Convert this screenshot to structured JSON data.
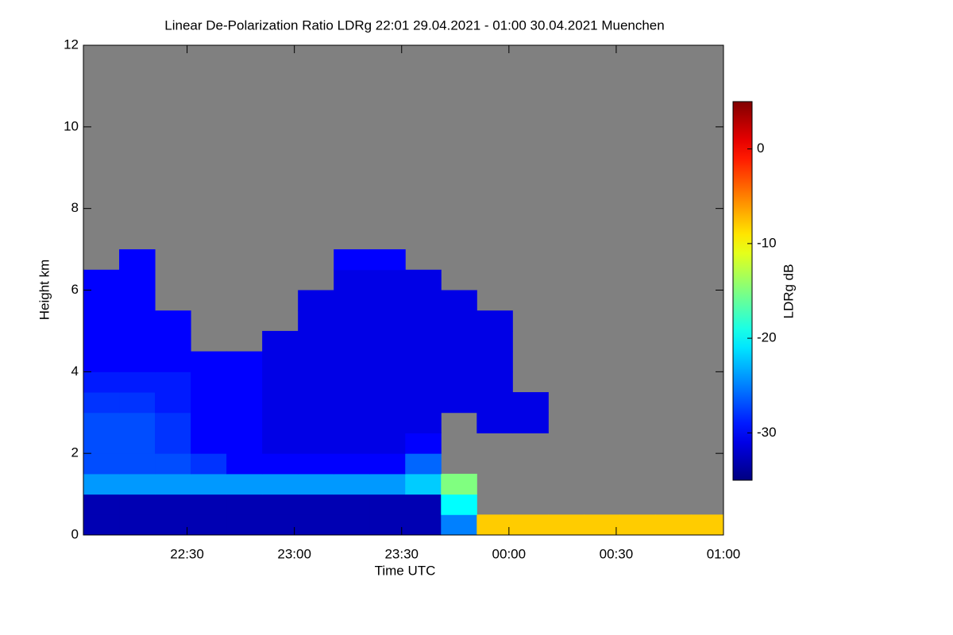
{
  "chart_data": {
    "type": "heatmap",
    "title": "Linear De-Polarization Ratio LDRg   22:01 29.04.2021 - 01:00 30.04.2021 Muenchen",
    "xlabel": "Time UTC",
    "ylabel": "Height km",
    "colorbar_label": "LDRg dB",
    "colormap": "jet",
    "missing_color": "#808080",
    "xlim": [
      "2021-04-29T22:01",
      "2021-04-30T01:00"
    ],
    "xticks": [
      {
        "value": "2021-04-29T22:30",
        "label": "22:30"
      },
      {
        "value": "2021-04-29T23:00",
        "label": "23:00"
      },
      {
        "value": "2021-04-29T23:30",
        "label": "23:30"
      },
      {
        "value": "2021-04-30T00:00",
        "label": "00:00"
      },
      {
        "value": "2021-04-30T00:30",
        "label": "00:30"
      },
      {
        "value": "2021-04-30T01:00",
        "label": "01:00"
      }
    ],
    "ylim": [
      0,
      12
    ],
    "yticks": [
      0,
      2,
      4,
      6,
      8,
      10,
      12
    ],
    "clim": [
      -35,
      5
    ],
    "cticks": [
      -30,
      -20,
      -10,
      0
    ],
    "x_bins": [
      "2021-04-29T22:01",
      "2021-04-29T22:11",
      "2021-04-29T22:21",
      "2021-04-29T22:31",
      "2021-04-29T22:41",
      "2021-04-29T22:51",
      "2021-04-29T23:01",
      "2021-04-29T23:11",
      "2021-04-29T23:21",
      "2021-04-29T23:31",
      "2021-04-29T23:41",
      "2021-04-29T23:51",
      "2021-04-30T00:01",
      "2021-04-30T00:11",
      "2021-04-30T00:21",
      "2021-04-30T00:31",
      "2021-04-30T00:41",
      "2021-04-30T00:51",
      "2021-04-30T01:00"
    ],
    "y_bins": [
      0,
      0.5,
      1,
      1.5,
      2,
      2.5,
      3,
      3.5,
      4,
      4.5,
      5,
      5.5,
      6,
      6.5,
      7
    ],
    "z": [
      [
        -33,
        -33,
        -33,
        -33,
        -33,
        -33,
        -33,
        -33,
        -33,
        -33,
        -25,
        -8,
        -8,
        -8,
        -8,
        -8,
        -8,
        -8
      ],
      [
        -33,
        -33,
        -33,
        -33,
        -33,
        -33,
        -33,
        -33,
        -33,
        -33,
        -20,
        null,
        null,
        null,
        null,
        null,
        null,
        null
      ],
      [
        -24,
        -24,
        -24,
        -24,
        -24,
        -24,
        -24,
        -24,
        -24,
        -22,
        -15,
        null,
        null,
        null,
        null,
        null,
        null,
        null
      ],
      [
        -27,
        -27,
        -27,
        -28,
        -30,
        -30,
        -30,
        -30,
        -30,
        -26,
        null,
        null,
        null,
        null,
        null,
        null,
        null,
        null
      ],
      [
        -27,
        -27,
        -28,
        -30,
        -30,
        -31,
        -31,
        -31,
        -31,
        -30,
        null,
        null,
        null,
        null,
        null,
        null,
        null,
        null
      ],
      [
        -27,
        -27,
        -28,
        -30,
        -30,
        -31,
        -31,
        -31,
        -31,
        -31,
        null,
        -31,
        -31,
        null,
        null,
        null,
        null,
        null
      ],
      [
        -28,
        -28,
        -29,
        -30,
        -30,
        -31,
        -31,
        -31,
        -31,
        -31,
        -31,
        -31,
        -31,
        null,
        null,
        null,
        null,
        null
      ],
      [
        -29,
        -29,
        -29,
        -30,
        -30,
        -31,
        -31,
        -31,
        -31,
        -31,
        -31,
        -31,
        null,
        null,
        null,
        null,
        null,
        null
      ],
      [
        -30,
        -30,
        -30,
        -30,
        -30,
        -31,
        -31,
        -31,
        -31,
        -31,
        -31,
        -31,
        null,
        null,
        null,
        null,
        null,
        null
      ],
      [
        -30,
        -30,
        -30,
        null,
        null,
        -31,
        -31,
        -31,
        -31,
        -31,
        -31,
        -31,
        null,
        null,
        null,
        null,
        null,
        null
      ],
      [
        -30,
        -30,
        -30,
        null,
        null,
        null,
        -31,
        -31,
        -31,
        -31,
        -31,
        -31,
        null,
        null,
        null,
        null,
        null,
        null
      ],
      [
        -30,
        -30,
        null,
        null,
        null,
        null,
        -31,
        -31,
        -31,
        -31,
        -31,
        null,
        null,
        null,
        null,
        null,
        null,
        null
      ],
      [
        -30,
        -30,
        null,
        null,
        null,
        null,
        null,
        -31,
        -31,
        -31,
        null,
        null,
        null,
        null,
        null,
        null,
        null,
        null
      ],
      [
        null,
        -30,
        null,
        null,
        null,
        null,
        null,
        -30,
        -30,
        null,
        null,
        null,
        null,
        null,
        null,
        null,
        null,
        null
      ]
    ]
  }
}
